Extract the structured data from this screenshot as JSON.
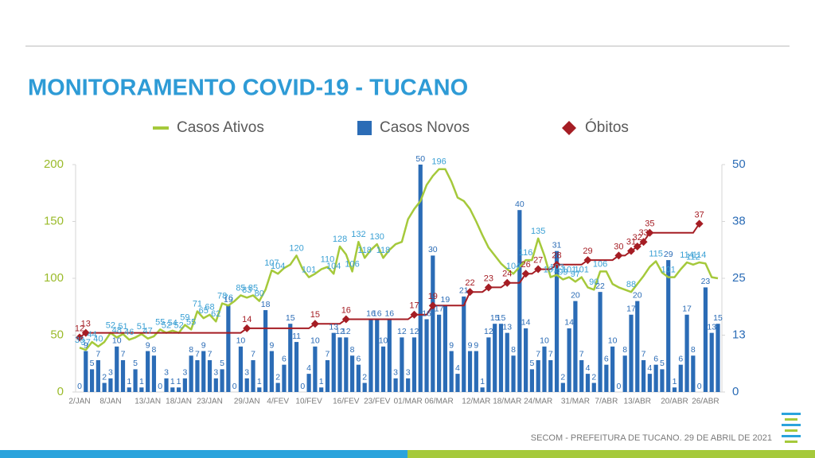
{
  "chart_data": {
    "type": "combo",
    "title": "MONITORAMENTO COVID-19 - TUCANO",
    "categories": [
      "2/JAN",
      null,
      null,
      null,
      null,
      "8/JAN",
      null,
      null,
      null,
      null,
      null,
      "13/JAN",
      null,
      null,
      null,
      null,
      "18/JAN",
      null,
      null,
      null,
      null,
      "23/JAN",
      null,
      null,
      null,
      null,
      null,
      "29/JAN",
      null,
      null,
      null,
      null,
      "4/FEV",
      null,
      null,
      null,
      null,
      "10/FEV",
      null,
      null,
      null,
      null,
      null,
      "16/FEV",
      null,
      null,
      null,
      null,
      "23/FEV",
      null,
      null,
      null,
      null,
      "01/MAR",
      null,
      null,
      null,
      null,
      "06/MAR",
      null,
      null,
      null,
      null,
      null,
      "12/MAR",
      null,
      null,
      null,
      null,
      "18/MAR",
      null,
      null,
      null,
      null,
      "24/MAR",
      null,
      null,
      null,
      null,
      null,
      "31/MAR",
      null,
      null,
      null,
      null,
      "7/ABR",
      null,
      null,
      null,
      null,
      "13/ABR",
      null,
      null,
      null,
      null,
      null,
      "20/ABR",
      null,
      null,
      null,
      null,
      "26/ABR",
      null,
      null
    ],
    "series": [
      {
        "name": "Casos Ativos",
        "type": "line",
        "axis": "y",
        "color": "#a5c93b",
        "values": [
          39,
          37,
          44,
          40,
          44,
          52,
          48,
          51,
          46,
          48,
          51,
          47,
          49,
          55,
          52,
          54,
          52,
          59,
          55,
          71,
          65,
          68,
          62,
          78,
          76,
          80,
          85,
          83,
          85,
          80,
          90,
          107,
          104,
          109,
          112,
          120,
          108,
          101,
          104,
          108,
          110,
          104,
          128,
          121,
          106,
          132,
          118,
          125,
          130,
          118,
          125,
          130,
          132,
          152,
          161,
          168,
          182,
          190,
          196,
          196,
          185,
          171,
          168,
          161,
          150,
          138,
          127,
          120,
          113,
          108,
          104,
          110,
          116,
          116,
          135,
          120,
          101,
          103,
          99,
          101,
          97,
          101,
          92,
          90,
          106,
          106,
          95,
          92,
          90,
          88,
          95,
          102,
          110,
          115,
          105,
          101,
          101,
          108,
          114,
          112,
          114,
          113,
          101,
          100
        ]
      },
      {
        "name": "Casos Novos",
        "type": "bar",
        "axis": "y2",
        "color": "#2b6cb6",
        "values": [
          0,
          9,
          5,
          7,
          2,
          3,
          10,
          7,
          1,
          5,
          1,
          9,
          8,
          0,
          3,
          1,
          1,
          3,
          8,
          7,
          9,
          7,
          3,
          5,
          19,
          0,
          10,
          3,
          7,
          1,
          18,
          9,
          2,
          6,
          15,
          11,
          0,
          4,
          10,
          1,
          7,
          13,
          12,
          12,
          8,
          6,
          2,
          16,
          16,
          10,
          16,
          3,
          12,
          3,
          12,
          50,
          16,
          30,
          17,
          19,
          9,
          4,
          21,
          9,
          9,
          1,
          12,
          15,
          15,
          13,
          8,
          40,
          14,
          5,
          7,
          10,
          7,
          31,
          2,
          14,
          20,
          7,
          4,
          2,
          22,
          6,
          10,
          0,
          8,
          17,
          20,
          7,
          4,
          6,
          5,
          29,
          1,
          6,
          17,
          8,
          0,
          23,
          13,
          15
        ]
      },
      {
        "name": "Óbitos",
        "type": "steps",
        "axis": "y2",
        "color": "#a51d24",
        "values": [
          12,
          13,
          13,
          13,
          13,
          13,
          13,
          13,
          13,
          13,
          13,
          13,
          13,
          13,
          13,
          13,
          13,
          13,
          13,
          13,
          13,
          13,
          13,
          13,
          13,
          13,
          13,
          14,
          14,
          14,
          14,
          14,
          14,
          14,
          14,
          14,
          14,
          14,
          15,
          15,
          15,
          15,
          15,
          16,
          16,
          16,
          16,
          16,
          16,
          16,
          16,
          16,
          16,
          16,
          17,
          17,
          17,
          19,
          19,
          19,
          19,
          19,
          19,
          22,
          22,
          22,
          23,
          23,
          23,
          24,
          24,
          24,
          26,
          26,
          27,
          27,
          27,
          28,
          28,
          28,
          28,
          28,
          29,
          29,
          29,
          29,
          29,
          30,
          30,
          31,
          32,
          33,
          35,
          35,
          35,
          35,
          35,
          35,
          35,
          35,
          37,
          null,
          null,
          null
        ]
      }
    ],
    "ylim": [
      0,
      200
    ],
    "yticks": [
      0,
      50,
      100,
      150,
      200
    ],
    "y2lim": [
      0,
      50
    ],
    "y2ticks": [
      0,
      {
        "value": 12.5,
        "label": "13"
      },
      25,
      {
        "value": 37.5,
        "label": "38"
      },
      50
    ],
    "grid": false,
    "legend": "top"
  },
  "footer": "SECOM - PREFEITURA DE TUCANO. 29 DE ABRIL DE 2021"
}
